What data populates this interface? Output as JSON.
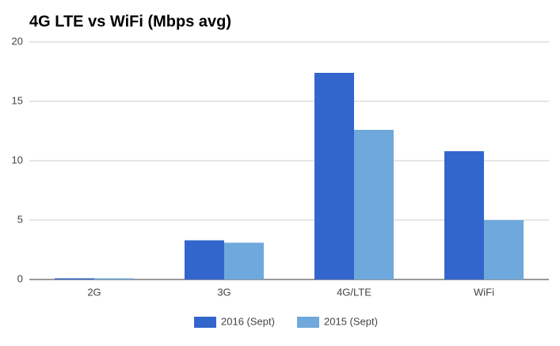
{
  "chart_data": {
    "type": "bar",
    "title": "4G LTE vs WiFi (Mbps avg)",
    "categories": [
      "2G",
      "3G",
      "4G/LTE",
      "WiFi"
    ],
    "series": [
      {
        "name": "2016 (Sept)",
        "color": "#3366cc",
        "values": [
          0.1,
          3.3,
          17.4,
          10.8
        ]
      },
      {
        "name": "2015 (Sept)",
        "color": "#6fa8dc",
        "values": [
          0.1,
          3.1,
          12.6,
          5.0
        ]
      }
    ],
    "ylim": [
      0,
      20
    ],
    "yticks": [
      0,
      5,
      10,
      15,
      20
    ],
    "grid": true,
    "legend": "bottom"
  }
}
